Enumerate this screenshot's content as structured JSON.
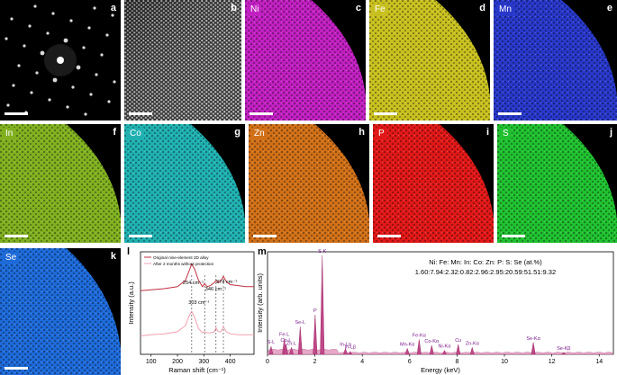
{
  "figure": {
    "panel_letters": [
      "a",
      "b",
      "c",
      "d",
      "e",
      "f",
      "g",
      "h",
      "i",
      "j",
      "k",
      "l",
      "m"
    ],
    "element_maps": [
      {
        "letter": "c",
        "element": "Ni",
        "color": "#c020c0"
      },
      {
        "letter": "d",
        "element": "Fe",
        "color": "#c8c020"
      },
      {
        "letter": "e",
        "element": "Mn",
        "color": "#2838c8"
      },
      {
        "letter": "f",
        "element": "In",
        "color": "#80b020"
      },
      {
        "letter": "g",
        "element": "Co",
        "color": "#20b0b0"
      },
      {
        "letter": "h",
        "element": "Zn",
        "color": "#d07018"
      },
      {
        "letter": "i",
        "element": "P",
        "color": "#e01818"
      },
      {
        "letter": "j",
        "element": "S",
        "color": "#20c030"
      },
      {
        "letter": "k",
        "element": "Se",
        "color": "#1e6ad8"
      }
    ]
  },
  "chart_data": [
    {
      "panel": "l",
      "type": "line",
      "xlabel": "Raman shift (cm⁻¹)",
      "ylabel": "Intensity (a.u.)",
      "xlim": [
        60,
        490
      ],
      "xticks": [
        "100",
        "200",
        "300",
        "400"
      ],
      "legend": [
        "Original nine-element 2D alloy",
        "After 2 months without protection"
      ],
      "legend_position": "top-left",
      "peak_labels": [
        "254 cm⁻¹",
        "303 cm⁻¹",
        "346 cm⁻¹",
        "374 cm⁻¹"
      ],
      "peak_positions": [
        254,
        303,
        346,
        374
      ],
      "series": [
        {
          "name": "Original nine-element 2D alloy",
          "color": "#c03040",
          "x": [
            60,
            100,
            150,
            200,
            230,
            245,
            254,
            265,
            280,
            295,
            303,
            312,
            325,
            340,
            346,
            355,
            365,
            374,
            385,
            400,
            430,
            460,
            490
          ],
          "y": [
            0.62,
            0.63,
            0.64,
            0.66,
            0.72,
            0.82,
            0.88,
            0.83,
            0.72,
            0.66,
            0.69,
            0.66,
            0.67,
            0.7,
            0.72,
            0.7,
            0.72,
            0.76,
            0.71,
            0.68,
            0.67,
            0.66,
            0.66
          ]
        },
        {
          "name": "After 2 months without protection",
          "color": "#f0a0b0",
          "x": [
            60,
            100,
            150,
            200,
            230,
            245,
            254,
            265,
            280,
            295,
            303,
            312,
            325,
            340,
            346,
            355,
            365,
            374,
            385,
            400,
            430,
            460,
            490
          ],
          "y": [
            0.18,
            0.19,
            0.2,
            0.22,
            0.28,
            0.38,
            0.42,
            0.36,
            0.25,
            0.21,
            0.22,
            0.21,
            0.21,
            0.22,
            0.26,
            0.22,
            0.22,
            0.27,
            0.22,
            0.2,
            0.19,
            0.19,
            0.19
          ]
        }
      ]
    },
    {
      "panel": "m",
      "type": "bar",
      "xlabel": "Energy (keV)",
      "ylabel": "Intensity (arb. units)",
      "xlim": [
        0,
        14.6
      ],
      "xticks": [
        "0",
        "2",
        "4",
        "6",
        "8",
        "10",
        "12",
        "14"
      ],
      "composition_title": "Ni: Fe: Mn: In: Co: Zn: P: S: Se (at.%)",
      "composition_values": "1.60:7.94:2.32:0.82:2.96:2.95:20.59:51.51:9.32",
      "peaks": [
        {
          "label": "S-L",
          "energy": 0.15,
          "height": 0.08
        },
        {
          "label": "Fe-L",
          "energy": 0.71,
          "height": 0.16
        },
        {
          "label": "Co-L",
          "energy": 0.78,
          "height": 0.1
        },
        {
          "label": "Zn-L",
          "energy": 1.01,
          "height": 0.07
        },
        {
          "label": "Se-L",
          "energy": 1.38,
          "height": 0.28
        },
        {
          "label": "P",
          "energy": 2.01,
          "height": 0.4
        },
        {
          "label": "S-K",
          "energy": 2.31,
          "height": 1.0
        },
        {
          "label": "In-Lα",
          "energy": 3.29,
          "height": 0.06
        },
        {
          "label": "In-Lβ",
          "energy": 3.49,
          "height": 0.03
        },
        {
          "label": "Mn-Kα",
          "energy": 5.9,
          "height": 0.06
        },
        {
          "label": "Fe-Kα",
          "energy": 6.4,
          "height": 0.15
        },
        {
          "label": "Co-Kα",
          "energy": 6.93,
          "height": 0.09
        },
        {
          "label": "Ni-Kα",
          "energy": 7.47,
          "height": 0.04
        },
        {
          "label": "Cu",
          "energy": 8.05,
          "height": 0.1
        },
        {
          "label": "Zn-Kα",
          "energy": 8.64,
          "height": 0.07
        },
        {
          "label": "Se-Kα",
          "energy": 11.22,
          "height": 0.12
        },
        {
          "label": "Se-Kβ",
          "energy": 12.5,
          "height": 0.02
        }
      ]
    }
  ]
}
